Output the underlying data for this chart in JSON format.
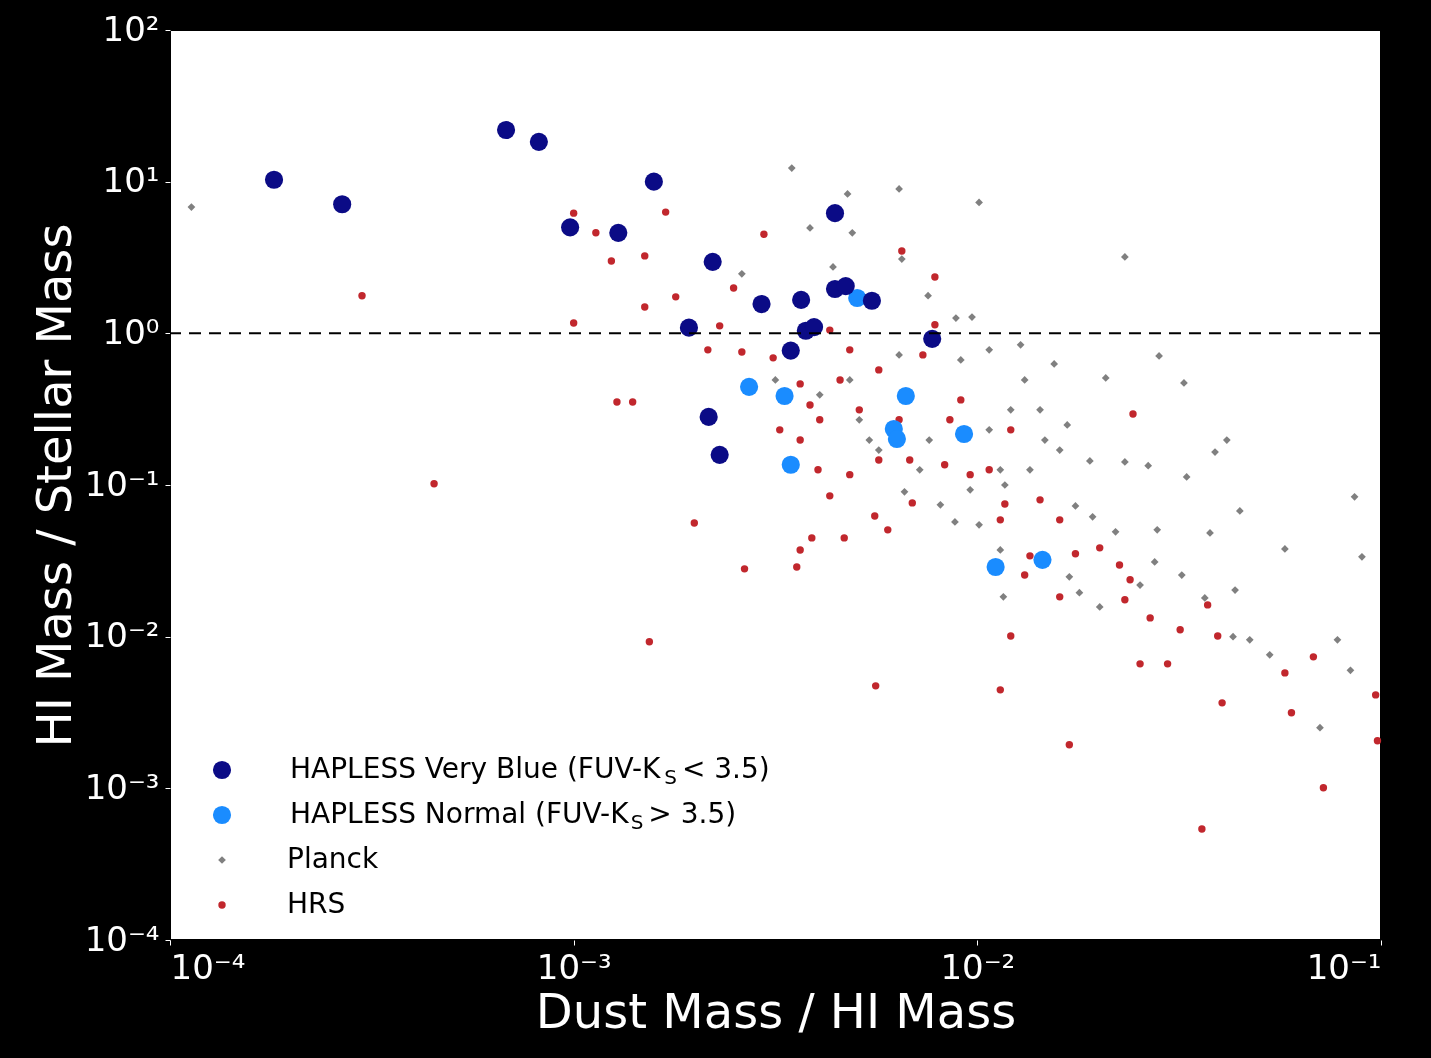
{
  "chart_data": {
    "type": "scatter",
    "xlabel": "Dust Mass / HI Mass",
    "ylabel": "HI Mass / Stellar Mass",
    "log": "xy",
    "grid": false,
    "legend": "bottom left",
    "xlim": [
      0.0001,
      0.1
    ],
    "ylim": [
      0.0001,
      100
    ],
    "xticks": [
      {
        "value": 0.0001,
        "label": "10⁻⁴"
      },
      {
        "value": 0.001,
        "label": "10⁻³"
      },
      {
        "value": 0.01,
        "label": "10⁻²"
      },
      {
        "value": 0.1,
        "label": "10⁻¹"
      }
    ],
    "yticks": [
      {
        "value": 0.0001,
        "label": "10⁻⁴"
      },
      {
        "value": 0.001,
        "label": "10⁻³"
      },
      {
        "value": 0.01,
        "label": "10⁻²"
      },
      {
        "value": 0.1,
        "label": "10⁻¹"
      },
      {
        "value": 1,
        "label": "10⁰"
      },
      {
        "value": 10,
        "label": "10¹"
      },
      {
        "value": 100,
        "label": "10²"
      }
    ],
    "ref_lines": [
      {
        "axis": "y",
        "value": 1,
        "color": "#000000",
        "line_style": "dashed"
      }
    ],
    "series": [
      {
        "name": "HAPLESS Very Blue (FUV-K$_{S}$ < 3.5)",
        "color": "#0b0b86",
        "marker": "circle",
        "x": [
          0.000181,
          0.000267,
          0.00068,
          0.00082,
          0.00098,
          0.00129,
          0.00158,
          0.00221,
          0.00193,
          0.00216,
          0.0023,
          0.00292,
          0.00366,
          0.00444,
          0.00444,
          0.00472,
          0.00548,
          0.00376,
          0.00394,
          0.00345,
          0.00773
        ],
        "values": [
          10.3,
          7.1,
          21.9,
          18.3,
          5.0,
          4.6,
          10.0,
          2.96,
          1.09,
          0.281,
          0.158,
          1.56,
          1.66,
          6.2,
          1.96,
          2.05,
          1.64,
          1.04,
          1.1,
          0.77,
          0.92
        ]
      },
      {
        "name": "HAPLESS Normal (FUV-K$_{S}$ > 3.5)",
        "color": "#1a8cff",
        "marker": "circle",
        "x": [
          0.00272,
          0.00333,
          0.00345,
          0.00504,
          0.00665,
          0.00621,
          0.00632,
          0.00927,
          0.0111,
          0.0145
        ],
        "values": [
          0.444,
          0.386,
          0.136,
          1.71,
          0.386,
          0.234,
          0.201,
          0.217,
          0.0288,
          0.0321
        ]
      },
      {
        "name": "Planck",
        "color": "#808080",
        "marker": "diamond",
        "x": [
          0.000113,
          0.00347,
          0.00477,
          0.0064,
          0.0101,
          0.0232,
          0.0065,
          0.0049,
          0.00385,
          0.00261,
          0.00439,
          0.00755,
          0.00885,
          0.0097,
          0.0325,
          0.0282,
          0.0208,
          0.0155,
          0.0131,
          0.0167,
          0.0147,
          0.019,
          0.0232,
          0.0265,
          0.033,
          0.0388,
          0.0415,
          0.0447,
          0.0377,
          0.0279,
          0.0275,
          0.0321,
          0.0435,
          0.0578,
          0.086,
          0.0897,
          0.078,
          0.084,
          0.0706,
          0.0473,
          0.053,
          0.043,
          0.0366,
          0.022,
          0.0193,
          0.0175,
          0.0169,
          0.0179,
          0.0201,
          0.0253,
          0.0116,
          0.0114,
          0.0101,
          0.0088,
          0.0081,
          0.0066,
          0.0057,
          0.0054,
          0.0107,
          0.0121,
          0.0114,
          0.0076,
          0.0143,
          0.016,
          0.0135,
          0.00483,
          0.0051,
          0.00407,
          0.00316,
          0.0064,
          0.0091,
          0.0107,
          0.0128,
          0.0072,
          0.0096,
          0.0117
        ],
        "values": [
          6.8,
          12.3,
          8.3,
          8.95,
          7.3,
          3.19,
          3.09,
          4.6,
          4.95,
          2.47,
          2.74,
          1.77,
          1.26,
          1.28,
          0.471,
          0.71,
          0.508,
          0.628,
          0.493,
          0.249,
          0.198,
          0.144,
          0.142,
          0.134,
          0.113,
          0.165,
          0.198,
          0.0675,
          0.0483,
          0.0506,
          0.0311,
          0.0255,
          0.0203,
          0.0379,
          0.0836,
          0.0336,
          0.00953,
          0.006,
          0.00251,
          0.00953,
          0.00759,
          0.01,
          0.018,
          0.0491,
          0.0617,
          0.0728,
          0.0248,
          0.0195,
          0.0157,
          0.0219,
          0.0183,
          0.0373,
          0.0546,
          0.0571,
          0.074,
          0.0901,
          0.17,
          0.198,
          0.231,
          0.313,
          0.126,
          0.198,
          0.313,
          0.17,
          0.126,
          0.493,
          0.269,
          0.393,
          0.493,
          0.721,
          0.668,
          0.778,
          0.84,
          0.126,
          0.0929,
          0.1
        ]
      },
      {
        "name": "HRS",
        "color": "#c1272d",
        "marker": "circle",
        "x": [
          0.001,
          0.001135,
          0.00124,
          0.0015,
          0.00169,
          0.0015,
          0.00179,
          0.00128,
          0.0014,
          0.001,
          0.000451,
          0.00154,
          0.00199,
          0.00265,
          0.00296,
          0.00249,
          0.0023,
          0.00215,
          0.00261,
          0.00312,
          0.00364,
          0.00385,
          0.00324,
          0.00364,
          0.00403,
          0.00431,
          0.00389,
          0.00364,
          0.00357,
          0.00468,
          0.00483,
          0.00557,
          0.006,
          0.0069,
          0.0056,
          0.0065,
          0.00785,
          0.00785,
          0.00733,
          0.0064,
          0.0068,
          0.0083,
          0.0096,
          0.0107,
          0.0117,
          0.0121,
          0.0114,
          0.0135,
          0.0175,
          0.0201,
          0.0225,
          0.0239,
          0.0232,
          0.0268,
          0.0318,
          0.0253,
          0.0296,
          0.0372,
          0.0394,
          0.0404,
          0.0578,
          0.06,
          0.068,
          0.072,
          0.097,
          0.098,
          0.036,
          0.0169,
          0.0243,
          0.0131,
          0.016,
          0.0051,
          0.0057,
          0.00483,
          0.00431,
          0.00457,
          0.00407,
          0.0057,
          0.00855,
          0.0091,
          0.0121,
          0.0143,
          0.0114,
          0.016,
          0.000299
        ],
        "values": [
          6.2,
          4.6,
          3.0,
          3.24,
          6.3,
          1.49,
          1.74,
          0.353,
          0.353,
          1.17,
          0.102,
          0.00925,
          0.0562,
          0.028,
          4.5,
          1.99,
          1.12,
          0.778,
          0.754,
          0.689,
          0.464,
          0.337,
          0.231,
          0.198,
          0.126,
          0.0848,
          0.0448,
          0.0373,
          0.0288,
          0.0448,
          0.117,
          0.0625,
          0.0506,
          0.0762,
          0.00474,
          3.49,
          2.35,
          1.14,
          0.721,
          0.269,
          0.146,
          0.136,
          0.117,
          0.126,
          0.075,
          0.0101,
          0.00446,
          0.0341,
          0.0352,
          0.0385,
          0.0297,
          0.0237,
          0.0175,
          0.0133,
          0.0111,
          0.00662,
          0.00662,
          0.0162,
          0.0101,
          0.00366,
          0.00577,
          0.00315,
          0.00736,
          0.00101,
          0.00413,
          0.00206,
          0.00054,
          0.00194,
          0.294,
          0.0255,
          0.0183,
          0.313,
          0.574,
          0.778,
          1.05,
          0.493,
          0.269,
          0.146,
          0.269,
          0.364,
          0.231,
          0.0798,
          0.0589,
          0.0589,
          1.77
        ]
      }
    ]
  }
}
